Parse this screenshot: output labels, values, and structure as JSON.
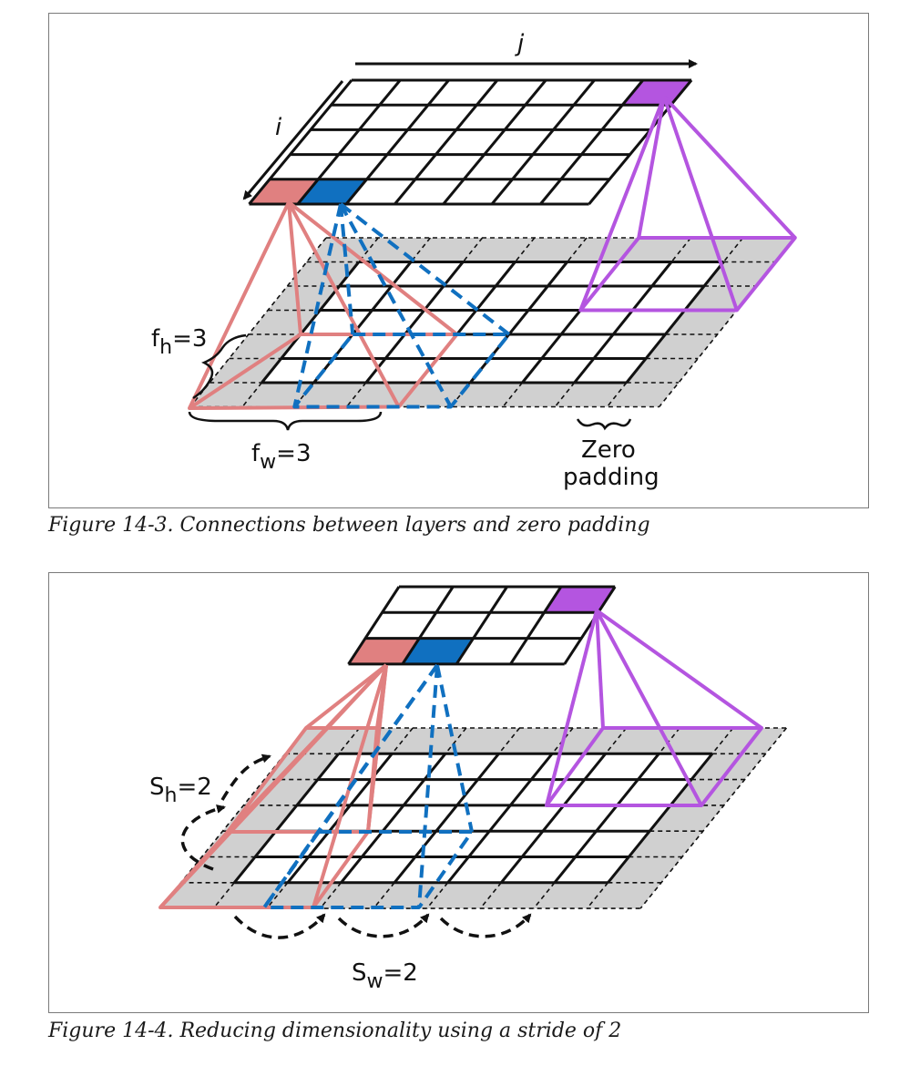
{
  "figure1": {
    "caption": "Figure 14-3. Connections between layers and zero padding",
    "label_j": "j",
    "label_i": "i",
    "label_fh_main": "f",
    "label_fh_sub": "h",
    "label_fh_val": "=3",
    "label_fw_main": "f",
    "label_fw_sub": "w",
    "label_fw_val": "=3",
    "label_zero_line1": "Zero",
    "label_zero_line2": "padding"
  },
  "figure2": {
    "caption": "Figure 14-4. Reducing dimensionality using a stride of 2",
    "label_sh_main": "S",
    "label_sh_sub": "h",
    "label_sh_val": "=2",
    "label_sw_main": "S",
    "label_sw_sub": "w",
    "label_sw_val": "=2"
  },
  "colors": {
    "pink": "#e08080",
    "blue": "#1070c0",
    "purple": "#b455e0",
    "padding_gray": "#d0d0d0",
    "black": "#111111"
  }
}
